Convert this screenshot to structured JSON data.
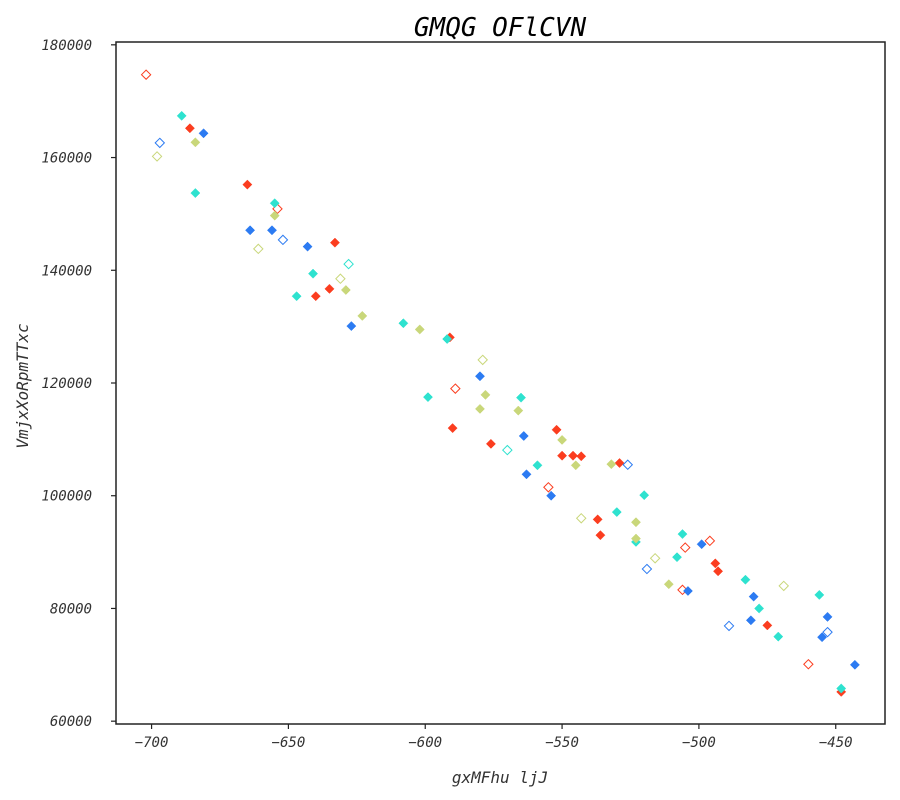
{
  "chart_data": {
    "type": "scatter",
    "title": "GMQG OFlCVN",
    "xlabel": "gxMFhu ljJ",
    "ylabel": "VmjxXoRpmTTxc",
    "xlim": [
      -713,
      -432
    ],
    "ylim": [
      59500,
      180500
    ],
    "xticks": [
      -700,
      -650,
      -600,
      -550,
      -500,
      -450
    ],
    "yticks": [
      60000,
      80000,
      100000,
      120000,
      140000,
      160000,
      180000
    ],
    "marker": "diamond",
    "grid": false,
    "legend": "none",
    "series": [
      {
        "color": "#fb3d1f",
        "filled": true,
        "points": [
          [
            -686,
            165200
          ],
          [
            -665,
            155200
          ],
          [
            -633,
            144900
          ],
          [
            -635,
            136700
          ],
          [
            -640,
            135400
          ],
          [
            -591,
            128100
          ],
          [
            -590,
            112000
          ],
          [
            -576,
            109200
          ],
          [
            -552,
            111700
          ],
          [
            -550,
            107100
          ],
          [
            -546,
            107100
          ],
          [
            -543,
            107000
          ],
          [
            -529,
            105800
          ],
          [
            -537,
            95800
          ],
          [
            -536,
            93000
          ],
          [
            -494,
            88000
          ],
          [
            -493,
            86600
          ],
          [
            -475,
            77000
          ],
          [
            -448,
            65200
          ]
        ]
      },
      {
        "color": "#fb3d1f",
        "filled": false,
        "points": [
          [
            -702,
            174700
          ],
          [
            -654,
            150900
          ],
          [
            -589,
            119000
          ],
          [
            -555,
            101500
          ],
          [
            -505,
            90800
          ],
          [
            -496,
            92000
          ],
          [
            -506,
            83300
          ],
          [
            -460,
            70100
          ]
        ]
      },
      {
        "color": "#2c7bf2",
        "filled": true,
        "points": [
          [
            -681,
            164300
          ],
          [
            -664,
            147100
          ],
          [
            -656,
            147100
          ],
          [
            -643,
            144200
          ],
          [
            -627,
            130100
          ],
          [
            -580,
            121200
          ],
          [
            -564,
            110600
          ],
          [
            -563,
            103800
          ],
          [
            -554,
            100000
          ],
          [
            -504,
            83100
          ],
          [
            -499,
            91400
          ],
          [
            -480,
            82100
          ],
          [
            -481,
            77900
          ],
          [
            -453,
            78500
          ],
          [
            -455,
            74900
          ],
          [
            -443,
            70000
          ]
        ]
      },
      {
        "color": "#2c7bf2",
        "filled": false,
        "points": [
          [
            -697,
            162600
          ],
          [
            -652,
            145400
          ],
          [
            -526,
            105500
          ],
          [
            -519,
            87000
          ],
          [
            -489,
            76900
          ],
          [
            -453,
            75800
          ]
        ]
      },
      {
        "color": "#2ee2cf",
        "filled": true,
        "points": [
          [
            -689,
            167400
          ],
          [
            -684,
            153700
          ],
          [
            -655,
            151900
          ],
          [
            -641,
            139400
          ],
          [
            -647,
            135400
          ],
          [
            -608,
            130600
          ],
          [
            -592,
            127800
          ],
          [
            -599,
            117500
          ],
          [
            -565,
            117400
          ],
          [
            -559,
            105400
          ],
          [
            -530,
            97100
          ],
          [
            -520,
            100100
          ],
          [
            -523,
            91800
          ],
          [
            -506,
            93200
          ],
          [
            -508,
            89100
          ],
          [
            -483,
            85100
          ],
          [
            -478,
            80000
          ],
          [
            -471,
            75000
          ],
          [
            -456,
            82400
          ],
          [
            -448,
            65800
          ]
        ]
      },
      {
        "color": "#2ee2cf",
        "filled": false,
        "points": [
          [
            -628,
            141100
          ],
          [
            -570,
            108100
          ]
        ]
      },
      {
        "color": "#c9d77a",
        "filled": true,
        "points": [
          [
            -684,
            162700
          ],
          [
            -655,
            149700
          ],
          [
            -629,
            136500
          ],
          [
            -623,
            131900
          ],
          [
            -602,
            129500
          ],
          [
            -578,
            117900
          ],
          [
            -580,
            115400
          ],
          [
            -566,
            115100
          ],
          [
            -550,
            109900
          ],
          [
            -545,
            105400
          ],
          [
            -532,
            105600
          ],
          [
            -523,
            95300
          ],
          [
            -523,
            92400
          ],
          [
            -511,
            84300
          ]
        ]
      },
      {
        "color": "#c9d77a",
        "filled": false,
        "points": [
          [
            -698,
            160200
          ],
          [
            -661,
            143800
          ],
          [
            -631,
            138500
          ],
          [
            -579,
            124100
          ],
          [
            -543,
            96000
          ],
          [
            -516,
            88900
          ],
          [
            -469,
            84000
          ]
        ]
      }
    ]
  }
}
